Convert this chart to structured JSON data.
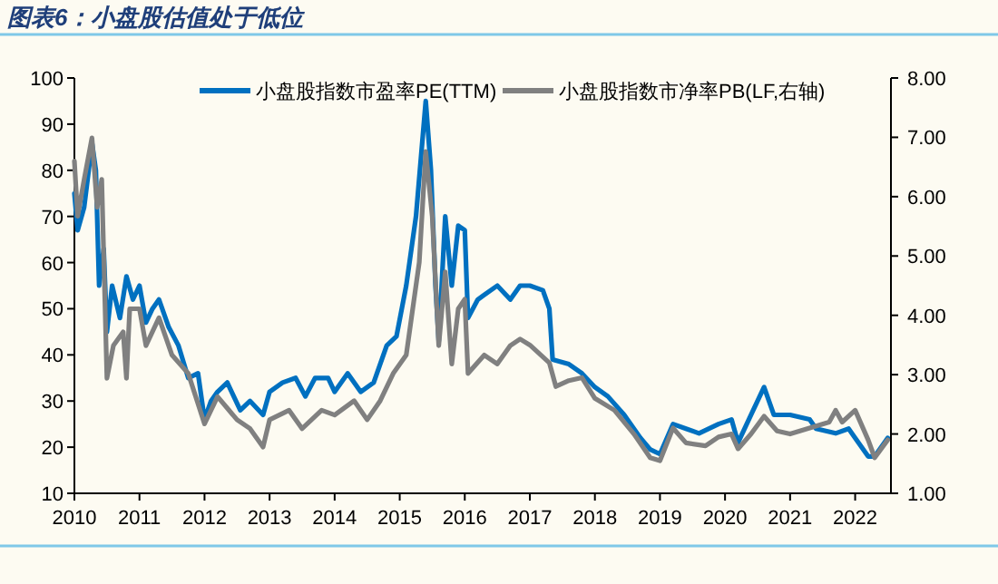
{
  "chart_data": {
    "type": "line",
    "title": "图表6：小盘股估值处于低位",
    "legend": "top",
    "grid": false,
    "xlim": [
      2010,
      2022.55
    ],
    "xticks": [
      2010,
      2011,
      2012,
      2013,
      2014,
      2015,
      2016,
      2017,
      2018,
      2019,
      2020,
      2021,
      2022
    ],
    "ylim": [
      10,
      100
    ],
    "yticks": [
      10,
      20,
      30,
      40,
      50,
      60,
      70,
      80,
      90,
      100
    ],
    "y2lim": [
      1,
      8
    ],
    "y2ticks": [
      {
        "value": 1,
        "label": "1.00"
      },
      {
        "value": 2,
        "label": "2.00"
      },
      {
        "value": 3,
        "label": "3.00"
      },
      {
        "value": 4,
        "label": "4.00"
      },
      {
        "value": 5,
        "label": "5.00"
      },
      {
        "value": 6,
        "label": "6.00"
      },
      {
        "value": 7,
        "label": "7.00"
      },
      {
        "value": 8,
        "label": "8.00"
      }
    ],
    "series": [
      {
        "name": "小盘股指数市盈率PE(TTM)",
        "color": "#0070c0",
        "x": [
          2010,
          2010.05,
          2010.15,
          2010.22,
          2010.27,
          2010.33,
          2010.38,
          2010.45,
          2010.5,
          2010.58,
          2010.7,
          2010.8,
          2010.9,
          2011,
          2011.1,
          2011.2,
          2011.3,
          2011.45,
          2011.6,
          2011.75,
          2011.9,
          2012,
          2012.1,
          2012.2,
          2012.35,
          2012.55,
          2012.7,
          2012.9,
          2013,
          2013.2,
          2013.4,
          2013.55,
          2013.7,
          2013.9,
          2014,
          2014.2,
          2014.4,
          2014.6,
          2014.8,
          2014.95,
          2015.1,
          2015.25,
          2015.4,
          2015.48,
          2015.55,
          2015.6,
          2015.7,
          2015.8,
          2015.9,
          2016,
          2016.05,
          2016.2,
          2016.3,
          2016.5,
          2016.7,
          2016.85,
          2017,
          2017.2,
          2017.3,
          2017.35,
          2017.6,
          2017.8,
          2018,
          2018.2,
          2018.45,
          2018.7,
          2018.85,
          2019,
          2019.2,
          2019.4,
          2019.6,
          2019.9,
          2020.1,
          2020.2,
          2020.4,
          2020.6,
          2020.75,
          2021,
          2021.3,
          2021.4,
          2021.7,
          2021.9,
          2022,
          2022.2,
          2022.3,
          2022.5
        ],
        "values": [
          75,
          67,
          72,
          80,
          86,
          80,
          55,
          63,
          45,
          55,
          48,
          57,
          52,
          55,
          47,
          50,
          52,
          46,
          42,
          35,
          36,
          26,
          30,
          32,
          34,
          28,
          30,
          27,
          32,
          34,
          35,
          31,
          35,
          35,
          32,
          36,
          32,
          34,
          42,
          44,
          55,
          70,
          95,
          80,
          55,
          43,
          70,
          55,
          68,
          67,
          48,
          52,
          53,
          55,
          52,
          55,
          55,
          54,
          50,
          39,
          38,
          36,
          33,
          31,
          27,
          22,
          19.5,
          18.5,
          25,
          24,
          23,
          25,
          26,
          21,
          27,
          33,
          27,
          27,
          26,
          24,
          23,
          24,
          22,
          18,
          18,
          22
        ]
      },
      {
        "name": "小盘股指数市净率PB(LF,右轴)",
        "color": "#808080",
        "axis": "y2",
        "x": [
          2010,
          2010.05,
          2010.15,
          2010.27,
          2010.35,
          2010.42,
          2010.5,
          2010.6,
          2010.75,
          2010.8,
          2010.85,
          2011,
          2011.1,
          2011.3,
          2011.5,
          2011.75,
          2012,
          2012.2,
          2012.5,
          2012.7,
          2012.9,
          2013,
          2013.3,
          2013.5,
          2013.8,
          2014,
          2014.3,
          2014.5,
          2014.7,
          2014.9,
          2015.1,
          2015.3,
          2015.4,
          2015.5,
          2015.6,
          2015.7,
          2015.8,
          2015.9,
          2016,
          2016.05,
          2016.3,
          2016.5,
          2016.7,
          2016.85,
          2017,
          2017.3,
          2017.4,
          2017.6,
          2017.8,
          2018,
          2018.3,
          2018.6,
          2018.85,
          2019,
          2019.2,
          2019.4,
          2019.7,
          2019.9,
          2020.1,
          2020.2,
          2020.4,
          2020.6,
          2020.8,
          2021,
          2021.3,
          2021.6,
          2021.7,
          2021.8,
          2022,
          2022.2,
          2022.3,
          2022.5
        ],
        "values": [
          6.6,
          5.67,
          6.29,
          6.99,
          5.82,
          6.29,
          2.94,
          3.49,
          3.72,
          2.94,
          4.11,
          4.11,
          3.49,
          3.96,
          3.33,
          3.02,
          2.17,
          2.63,
          2.24,
          2.09,
          1.78,
          2.24,
          2.4,
          2.09,
          2.4,
          2.32,
          2.56,
          2.24,
          2.56,
          3.02,
          3.33,
          4.89,
          6.76,
          5.67,
          3.49,
          4.73,
          3.18,
          4.11,
          4.27,
          3.02,
          3.33,
          3.18,
          3.49,
          3.6,
          3.5,
          3.2,
          2.8,
          2.9,
          2.95,
          2.6,
          2.4,
          2.0,
          1.6,
          1.55,
          2.1,
          1.85,
          1.8,
          1.95,
          2.0,
          1.75,
          2.0,
          2.3,
          2.05,
          2.0,
          2.1,
          2.2,
          2.4,
          2.2,
          2.4,
          1.9,
          1.6,
          1.9
        ]
      }
    ]
  }
}
